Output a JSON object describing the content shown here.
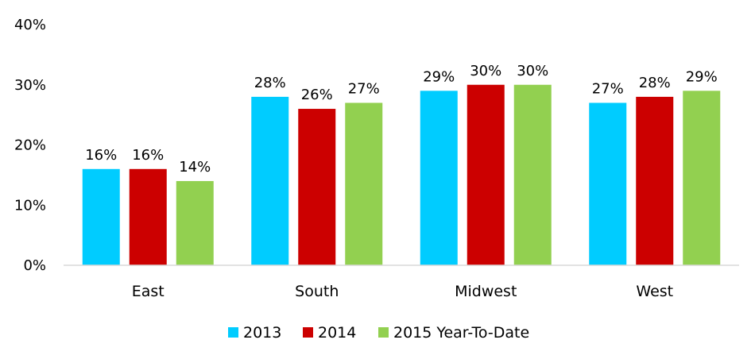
{
  "chart_data": {
    "type": "bar",
    "title": "",
    "xlabel": "",
    "ylabel": "",
    "categories": [
      "East",
      "South",
      "Midwest",
      "West"
    ],
    "series": [
      {
        "name": "2013",
        "color": "#00CCFF",
        "values": [
          16,
          28,
          29,
          27
        ],
        "labels": [
          "16%",
          "28%",
          "29%",
          "27%"
        ]
      },
      {
        "name": "2014",
        "color": "#CC0000",
        "values": [
          16,
          26,
          30,
          28
        ],
        "labels": [
          "16%",
          "26%",
          "30%",
          "28%"
        ]
      },
      {
        "name": "2015 Year-To-Date",
        "color": "#92D050",
        "values": [
          14,
          27,
          30,
          29
        ],
        "labels": [
          "14%",
          "27%",
          "30%",
          "29%"
        ]
      }
    ],
    "ylim": [
      0,
      40
    ],
    "yticks": [
      0,
      10,
      20,
      30,
      40
    ],
    "ytick_labels": [
      "0%",
      "10%",
      "20%",
      "30%",
      "40%"
    ],
    "grid": false,
    "legend": "bottom"
  }
}
